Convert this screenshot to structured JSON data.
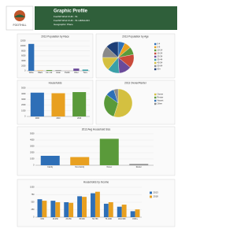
{
  "header": {
    "title": "Graphic Profile",
    "lines": [
      "Foothill Wind CUR - 51",
      "Foothill Wind CUR - 51 HIMALIAN",
      "Geographic: Place"
    ],
    "logo": "FOOTHILL"
  },
  "charts": [
    {
      "type": "bar",
      "title": "2013 Population by Race",
      "categories": [
        "White",
        "Black",
        "Am. Ind.",
        "Asian",
        "Pacific",
        "Other",
        "Two+"
      ],
      "values": [
        10800,
        150,
        300,
        250,
        20,
        900,
        500
      ],
      "colors": [
        "#2e6fb7",
        "#e8a020",
        "#5a9a3a",
        "#8a8a8a",
        "#c94a3a",
        "#6a4a9a",
        "#3aa0a8"
      ],
      "ylim": [
        0,
        12000
      ],
      "yticks": [
        0,
        2000,
        4000,
        6000,
        8000,
        10000,
        12000
      ]
    },
    {
      "type": "pie",
      "title": "2013 Population by Age",
      "categories": [
        "0-4",
        "5-9",
        "10-14",
        "15-24",
        "25-34",
        "35-44",
        "45-54",
        "55-64",
        "65+"
      ],
      "values": [
        7,
        7,
        8,
        14,
        13,
        12,
        14,
        12,
        13
      ],
      "colors": [
        "#2e6fb7",
        "#e8a020",
        "#5a9a3a",
        "#c94a3a",
        "#6a4a9a",
        "#3aa0a8",
        "#d4c040",
        "#8a8a8a",
        "#1e3f77"
      ]
    },
    {
      "type": "bar",
      "title": "Households",
      "categories": [
        "2000",
        "2010",
        "2013"
      ],
      "values": [
        4200,
        4100,
        4300
      ],
      "colors": [
        "#2e6fb7",
        "#e8a020",
        "#5a9a3a"
      ],
      "ylim": [
        0,
        5000
      ],
      "yticks": [
        0,
        1000,
        2000,
        3000,
        4000,
        5000
      ]
    },
    {
      "type": "pie",
      "title": "2013 Owner/Renter",
      "categories": [
        "Owner",
        "Renter",
        "Vacant",
        "Other"
      ],
      "values": [
        55,
        30,
        10,
        5
      ],
      "colors": [
        "#d4c040",
        "#5a9a3a",
        "#2e6fb7",
        "#8a8a8a"
      ]
    },
    {
      "type": "bar",
      "title": "2013 Avg Household Size",
      "categories": [
        "Family",
        "Non-Family",
        "Owner",
        "Renter"
      ],
      "values": [
        1500,
        1300,
        4200,
        200
      ],
      "colors": [
        "#2e6fb7",
        "#e8a020",
        "#5a9a3a",
        "#8a8a8a"
      ],
      "ylim": [
        0,
        5000
      ],
      "yticks": [
        0,
        1000,
        2000,
        3000,
        4000,
        5000
      ]
    },
    {
      "type": "grouped",
      "title": "Households by Income",
      "categories": [
        "<15K",
        "15-25K",
        "25-35K",
        "35-50K",
        "50-75K",
        "75-100K",
        "100-150K",
        "150K+"
      ],
      "series": [
        {
          "name": "2013",
          "color": "#2e6fb7",
          "values": [
            600,
            550,
            500,
            700,
            800,
            450,
            350,
            200
          ]
        },
        {
          "name": "2018",
          "color": "#e8a020",
          "values": [
            550,
            500,
            480,
            680,
            850,
            500,
            420,
            260
          ]
        }
      ],
      "ylim": [
        0,
        1000
      ],
      "yticks": [
        0,
        250,
        500,
        750,
        1000
      ]
    }
  ]
}
